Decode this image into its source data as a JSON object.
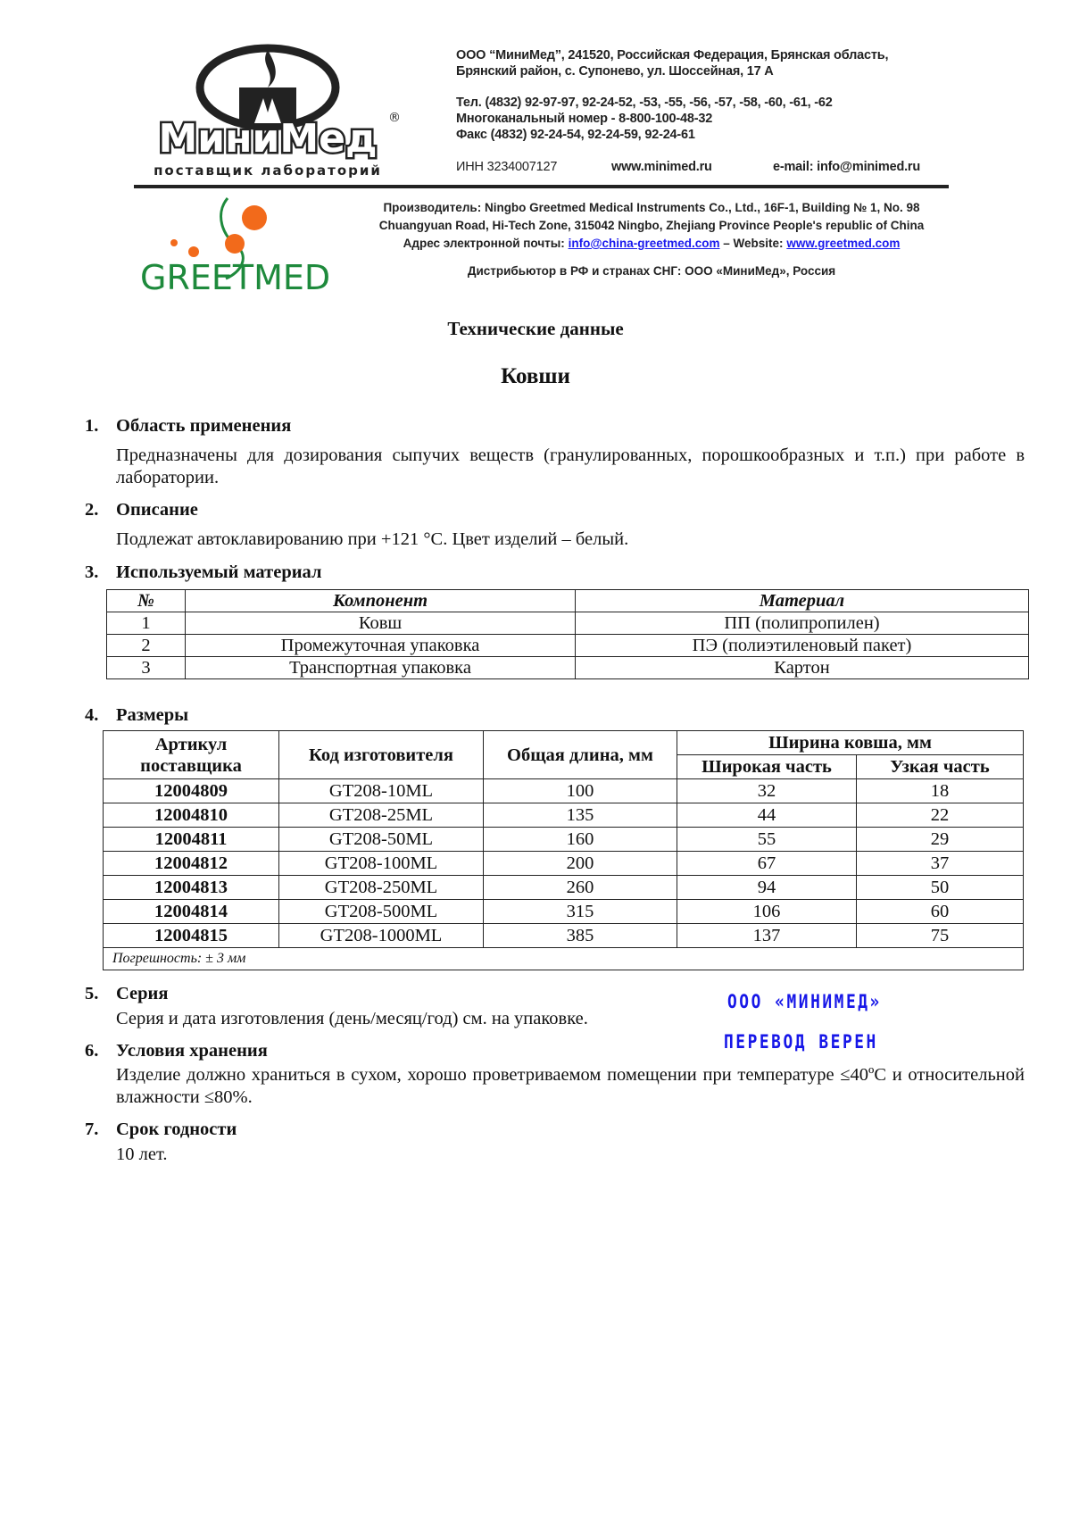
{
  "header": {
    "minimed_logo": {
      "name": "МиниМед",
      "tagline": "поставщик лабораторий"
    },
    "address_lines": [
      "ООО “МиниМед”, 241520, Российская Федерация, Брянская область,",
      "Брянский район, с. Супонево, ул. Шоссейная, 17 А"
    ],
    "phone_lines": [
      "Тел. (4832) 92-97-97, 92-24-52, -53, -55, -56, -57, -58, -60, -61, -62",
      "Многоканальный номер - 8-800-100-48-32",
      "Факс (4832) 92-24-54, 92-24-59, 92-24-61"
    ],
    "inn": "ИНН 3234007127",
    "website": "www.minimed.ru",
    "email": "e-mail: info@minimed.ru",
    "greetmed_logo": {
      "name": "GREETMED"
    },
    "manufacturer_lines": [
      "Производитель: Ningbo Greetmed Medical Instruments Co., Ltd., 16F-1, Building № 1, No. 98",
      "Chuangyuan Road, Hi-Tech Zone, 315042 Ningbo, Zhejiang Province People's republic of China"
    ],
    "email_label": "Адрес электронной почты:",
    "manufacturer_email": "info@china-greetmed.com",
    "website_label": "– Website:",
    "manufacturer_website": "www.greetmed.com",
    "distributor": "Дистрибьютор в РФ и странах СНГ: ООО «МиниМед», Россия"
  },
  "doc": {
    "subtitle": "Технические данные",
    "title": "Ковши"
  },
  "sections": [
    {
      "num": "1.",
      "heading": "Область применения",
      "text": "Предназначены для дозирования сыпучих веществ (гранулированных, порошкообразных и т.п.) при работе в лаборатории."
    },
    {
      "num": "2.",
      "heading": "Описание",
      "text": "Подлежат автоклавированию при +121 °С. Цвет изделий – белый."
    },
    {
      "num": "3.",
      "heading": "Используемый материал"
    },
    {
      "num": "4.",
      "heading": "Размеры"
    },
    {
      "num": "5.",
      "heading": "Серия",
      "text": "Серия и дата изготовления (день/месяц/год) см. на упаковке."
    },
    {
      "num": "6.",
      "heading": "Условия хранения",
      "text": "Изделие должно храниться в сухом, хорошо проветриваемом помещении при температуре ≤40ºС и относительной влажности ≤80%."
    },
    {
      "num": "7.",
      "heading": "Срок годности",
      "text": "10 лет."
    }
  ],
  "materials_table": {
    "headers": [
      "№",
      "Компонент",
      "Материал"
    ],
    "rows": [
      [
        "1",
        "Ковш",
        "ПП (полипропилен)"
      ],
      [
        "2",
        "Промежуточная упаковка",
        "ПЭ (полиэтиленовый пакет)"
      ],
      [
        "3",
        "Транспортная упаковка",
        "Картон"
      ]
    ]
  },
  "sizes_table": {
    "headers": {
      "article": "Артикул поставщика",
      "code": "Код изготовителя",
      "length": "Общая длина, мм",
      "width_group": "Ширина ковша, мм",
      "wide": "Широкая часть",
      "narrow": "Узкая часть"
    },
    "rows": [
      [
        "12004809",
        "GT208-10ML",
        "100",
        "32",
        "18"
      ],
      [
        "12004810",
        "GT208-25ML",
        "135",
        "44",
        "22"
      ],
      [
        "12004811",
        "GT208-50ML",
        "160",
        "55",
        "29"
      ],
      [
        "12004812",
        "GT208-100ML",
        "200",
        "67",
        "37"
      ],
      [
        "12004813",
        "GT208-250ML",
        "260",
        "94",
        "50"
      ],
      [
        "12004814",
        "GT208-500ML",
        "315",
        "106",
        "60"
      ],
      [
        "12004815",
        "GT208-1000ML",
        "385",
        "137",
        "75"
      ]
    ],
    "tolerance": "Погрешность: ± 3 мм"
  },
  "stamp": {
    "line1": "ООО «МИНИМЕД»",
    "line2": "ПЕРЕВОД ВЕРЕН",
    "color": "#1616e8"
  },
  "colors": {
    "greetmed_green": "#1e8a3c",
    "greetmed_orange": "#f26a1b",
    "link": "#1a1aee"
  }
}
